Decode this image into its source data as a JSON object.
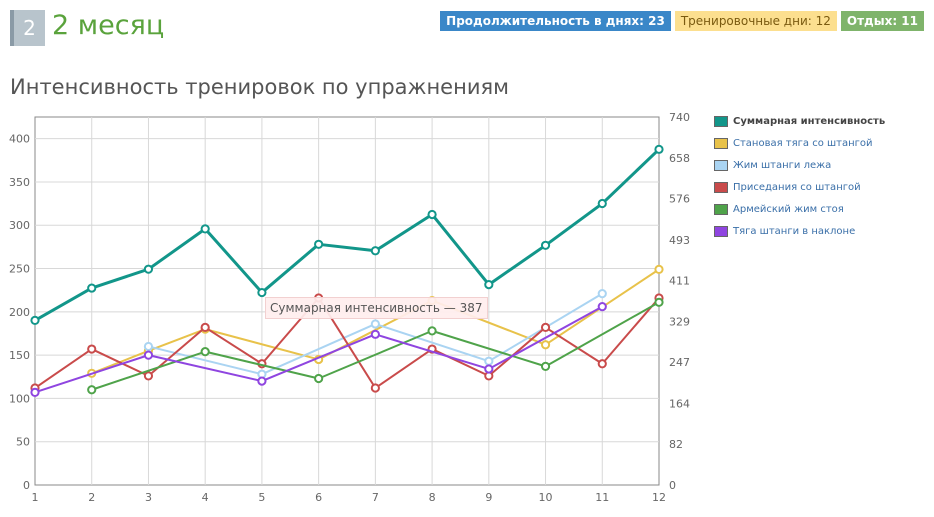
{
  "header": {
    "month_number": "2",
    "month_title": "2 месяц",
    "tags": {
      "duration": "Продолжительность в днях: 23",
      "training_days": "Тренировочные дни: 12",
      "rest": "Отдых: 11"
    }
  },
  "section_title": "Интенсивность тренировок по упражнениям",
  "tooltip": "Суммарная интенсивность — 387",
  "colors": {
    "total": "#12968a",
    "deadlift": "#e8c24a",
    "bench": "#aad4f2",
    "squat": "#c94b4b",
    "press": "#4fa34a",
    "row": "#8f45e0"
  },
  "chart_data": {
    "type": "line",
    "x": [
      1,
      2,
      3,
      4,
      5,
      6,
      7,
      8,
      9,
      10,
      11,
      12
    ],
    "xlim": [
      1,
      12
    ],
    "ylim": [
      0,
      425
    ],
    "y_ticks": [
      0,
      50,
      100,
      150,
      200,
      250,
      300,
      350,
      400
    ],
    "y2lim": [
      0,
      740
    ],
    "y2_ticks": [
      "0",
      "82",
      "164",
      "247",
      "329",
      "411",
      "493",
      "576",
      "658",
      "740"
    ],
    "grid": true,
    "legend_position": "right",
    "series": [
      {
        "name": "Суммарная интенсивность",
        "axis": "right",
        "color": "#12968a",
        "values": [
          331,
          396,
          434,
          515,
          387,
          484,
          471,
          544,
          403,
          482,
          566,
          675
        ]
      },
      {
        "name": "Становая тяга со штангой",
        "axis": "left",
        "color": "#e8c24a",
        "values": [
          null,
          129,
          155,
          180,
          null,
          145,
          null,
          213,
          null,
          162,
          null,
          249
        ]
      },
      {
        "name": "Жим штанги лежа",
        "axis": "left",
        "color": "#aad4f2",
        "values": [
          null,
          null,
          160,
          null,
          128,
          null,
          186,
          null,
          143,
          null,
          221,
          null
        ]
      },
      {
        "name": "Приседания со штангой",
        "axis": "left",
        "color": "#c94b4b",
        "values": [
          112,
          157,
          126,
          182,
          140,
          216,
          112,
          157,
          126,
          182,
          140,
          216
        ]
      },
      {
        "name": "Армейский жим стоя",
        "axis": "left",
        "color": "#4fa34a",
        "values": [
          null,
          110,
          null,
          154,
          null,
          123,
          null,
          178,
          null,
          137,
          null,
          211
        ]
      },
      {
        "name": "Тяга штанги в наклоне",
        "axis": "left",
        "color": "#8f45e0",
        "values": [
          107,
          null,
          150,
          null,
          120,
          null,
          174,
          null,
          134,
          null,
          206,
          null
        ]
      }
    ]
  }
}
